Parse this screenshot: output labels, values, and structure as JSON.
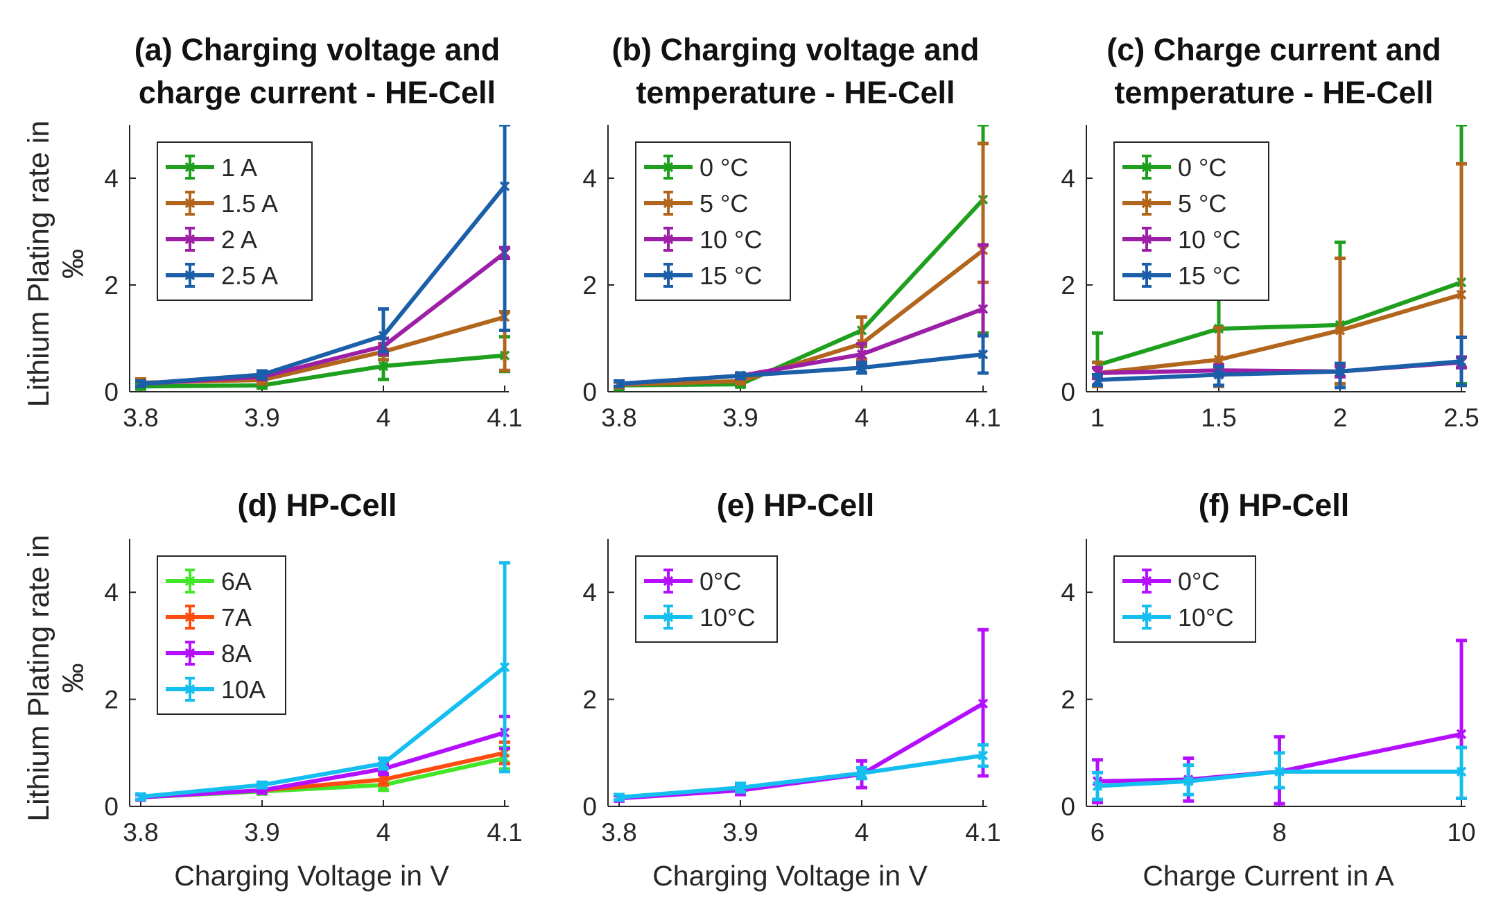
{
  "chart_data": [
    {
      "id": "a",
      "type": "line",
      "title_lines": [
        "(a) Charging voltage and",
        "charge current - HE-Cell"
      ],
      "ylabel_lines": [
        "Lithium Plating rate in",
        "‰"
      ],
      "xlabel": "",
      "x": [
        3.8,
        3.9,
        4.0,
        4.1
      ],
      "xticks": [
        3.8,
        3.9,
        4,
        4.1
      ],
      "xtick_labels": [
        "3.8",
        "3.9",
        "4",
        "4.1"
      ],
      "xlim": [
        3.8,
        4.1
      ],
      "ylim": [
        0,
        5
      ],
      "yticks": [
        0,
        2,
        4
      ],
      "ytick_labels": [
        "0",
        "2",
        "4"
      ],
      "legend_loc": "top-left",
      "series": [
        {
          "name": "1 A",
          "color": "#1ea01e",
          "values": [
            0.1,
            0.12,
            0.48,
            0.68
          ],
          "err_lo": [
            0.05,
            0.05,
            0.25,
            0.3
          ],
          "err_hi": [
            0.05,
            0.05,
            0.2,
            0.35
          ]
        },
        {
          "name": "1.5 A",
          "color": "#b2651c",
          "values": [
            0.17,
            0.22,
            0.75,
            1.4
          ],
          "err_lo": [
            0.07,
            0.07,
            0.15,
            1.0
          ],
          "err_hi": [
            0.07,
            0.07,
            0.15,
            0.1
          ]
        },
        {
          "name": "2 A",
          "color": "#9c1fa6",
          "values": [
            0.15,
            0.28,
            0.85,
            2.6
          ],
          "err_lo": [
            0.05,
            0.05,
            0.15,
            0.1
          ],
          "err_hi": [
            0.05,
            0.05,
            0.15,
            0.1
          ]
        },
        {
          "name": "2.5 A",
          "color": "#1a5fa8",
          "values": [
            0.15,
            0.32,
            1.05,
            3.85
          ],
          "err_lo": [
            0.05,
            0.07,
            0.3,
            2.7
          ],
          "err_hi": [
            0.05,
            0.07,
            0.5,
            1.15
          ]
        }
      ]
    },
    {
      "id": "b",
      "type": "line",
      "title_lines": [
        "(b) Charging voltage and",
        "temperature - HE-Cell"
      ],
      "ylabel_lines": [],
      "xlabel": "",
      "x": [
        3.8,
        3.9,
        4.0,
        4.1
      ],
      "xticks": [
        3.8,
        3.9,
        4,
        4.1
      ],
      "xtick_labels": [
        "3.8",
        "3.9",
        "4",
        "4.1"
      ],
      "xlim": [
        3.8,
        4.1
      ],
      "ylim": [
        0,
        5
      ],
      "yticks": [
        0,
        2,
        4
      ],
      "ytick_labels": [
        "0",
        "2",
        "4"
      ],
      "legend_loc": "top-left",
      "series": [
        {
          "name": "0 °C",
          "color": "#1ea01e",
          "values": [
            0.12,
            0.14,
            1.15,
            3.6
          ],
          "err_lo": [
            0.08,
            0.05,
            0.3,
            2.5
          ],
          "err_hi": [
            0.08,
            0.05,
            0.25,
            1.4
          ]
        },
        {
          "name": "5 °C",
          "color": "#b2651c",
          "values": [
            0.13,
            0.2,
            0.9,
            2.65
          ],
          "err_lo": [
            0.05,
            0.05,
            0.3,
            0.6
          ],
          "err_hi": [
            0.05,
            0.05,
            0.5,
            2.0
          ]
        },
        {
          "name": "10 °C",
          "color": "#9c1fa6",
          "values": [
            0.15,
            0.3,
            0.7,
            1.55
          ],
          "err_lo": [
            0.05,
            0.05,
            0.2,
            0.5
          ],
          "err_hi": [
            0.05,
            0.05,
            0.2,
            1.2
          ]
        },
        {
          "name": "15 °C",
          "color": "#1a5fa8",
          "values": [
            0.15,
            0.3,
            0.45,
            0.7
          ],
          "err_lo": [
            0.05,
            0.05,
            0.1,
            0.35
          ],
          "err_hi": [
            0.05,
            0.05,
            0.1,
            0.35
          ]
        }
      ]
    },
    {
      "id": "c",
      "type": "line",
      "title_lines": [
        "(c) Charge current and",
        "temperature - HE-Cell"
      ],
      "ylabel_lines": [],
      "xlabel": "",
      "x": [
        1,
        1.5,
        2,
        2.5
      ],
      "xticks": [
        1,
        1.5,
        2,
        2.5
      ],
      "xtick_labels": [
        "1",
        "1.5",
        "2",
        "2.5"
      ],
      "xlim": [
        1,
        2.5
      ],
      "ylim": [
        0,
        5
      ],
      "yticks": [
        0,
        2,
        4
      ],
      "ytick_labels": [
        "0",
        "2",
        "4"
      ],
      "legend_loc": "top-left",
      "series": [
        {
          "name": "0 °C",
          "color": "#1ea01e",
          "values": [
            0.5,
            1.18,
            1.25,
            2.05
          ],
          "err_lo": [
            0.4,
            0.8,
            1.1,
            1.9
          ],
          "err_hi": [
            0.6,
            0.6,
            1.55,
            2.95
          ]
        },
        {
          "name": "5 °C",
          "color": "#b2651c",
          "values": [
            0.35,
            0.6,
            1.15,
            1.82
          ],
          "err_lo": [
            0.25,
            0.5,
            1.0,
            1.7
          ],
          "err_hi": [
            0.2,
            0.6,
            1.35,
            2.45
          ]
        },
        {
          "name": "10 °C",
          "color": "#9c1fa6",
          "values": [
            0.35,
            0.4,
            0.38,
            0.55
          ],
          "err_lo": [
            0.1,
            0.1,
            0.1,
            0.1
          ],
          "err_hi": [
            0.1,
            0.1,
            0.1,
            0.1
          ]
        },
        {
          "name": "15 °C",
          "color": "#1a5fa8",
          "values": [
            0.22,
            0.32,
            0.38,
            0.57
          ],
          "err_lo": [
            0.1,
            0.2,
            0.3,
            0.45
          ],
          "err_hi": [
            0.1,
            0.15,
            0.15,
            0.45
          ]
        }
      ]
    },
    {
      "id": "d",
      "type": "line",
      "title_lines": [
        "(d) HP-Cell"
      ],
      "ylabel_lines": [
        "Lithium Plating rate in",
        "‰"
      ],
      "xlabel": "Charging Voltage in V",
      "x": [
        3.8,
        3.9,
        4.0,
        4.1
      ],
      "xticks": [
        3.8,
        3.9,
        4,
        4.1
      ],
      "xtick_labels": [
        "3.8",
        "3.9",
        "4",
        "4.1"
      ],
      "xlim": [
        3.8,
        4.1
      ],
      "ylim": [
        0,
        5
      ],
      "yticks": [
        0,
        2,
        4
      ],
      "ytick_labels": [
        "0",
        "2",
        "4"
      ],
      "legend_loc": "top-left",
      "series": [
        {
          "name": "6A",
          "color": "#44e62a",
          "values": [
            0.17,
            0.28,
            0.4,
            0.9
          ],
          "err_lo": [
            0.05,
            0.05,
            0.1,
            0.2
          ],
          "err_hi": [
            0.05,
            0.05,
            0.1,
            0.2
          ]
        },
        {
          "name": "7A",
          "color": "#ff4c0f",
          "values": [
            0.17,
            0.3,
            0.5,
            1.0
          ],
          "err_lo": [
            0.05,
            0.05,
            0.1,
            0.2
          ],
          "err_hi": [
            0.05,
            0.05,
            0.1,
            0.2
          ]
        },
        {
          "name": "8A",
          "color": "#b40fff",
          "values": [
            0.17,
            0.3,
            0.7,
            1.38
          ],
          "err_lo": [
            0.05,
            0.05,
            0.1,
            0.3
          ],
          "err_hi": [
            0.05,
            0.05,
            0.1,
            0.3
          ]
        },
        {
          "name": "10A",
          "color": "#14bff0",
          "values": [
            0.18,
            0.4,
            0.8,
            2.6
          ],
          "err_lo": [
            0.05,
            0.05,
            0.1,
            1.95
          ],
          "err_hi": [
            0.05,
            0.05,
            0.1,
            1.95
          ]
        }
      ]
    },
    {
      "id": "e",
      "type": "line",
      "title_lines": [
        "(e) HP-Cell"
      ],
      "ylabel_lines": [],
      "xlabel": "Charging Voltage in V",
      "x": [
        3.8,
        3.9,
        4.0,
        4.1
      ],
      "xticks": [
        3.8,
        3.9,
        4,
        4.1
      ],
      "xtick_labels": [
        "3.8",
        "3.9",
        "4",
        "4.1"
      ],
      "xlim": [
        3.8,
        4.1
      ],
      "ylim": [
        0,
        5
      ],
      "yticks": [
        0,
        2,
        4
      ],
      "ytick_labels": [
        "0",
        "2",
        "4"
      ],
      "legend_loc": "top-left",
      "series": [
        {
          "name": "0°C",
          "color": "#b40fff",
          "values": [
            0.15,
            0.3,
            0.6,
            1.92
          ],
          "err_lo": [
            0.05,
            0.08,
            0.25,
            1.35
          ],
          "err_hi": [
            0.05,
            0.08,
            0.25,
            1.38
          ]
        },
        {
          "name": "10°C",
          "color": "#14bff0",
          "values": [
            0.17,
            0.35,
            0.62,
            0.95
          ],
          "err_lo": [
            0.05,
            0.08,
            0.1,
            0.2
          ],
          "err_hi": [
            0.05,
            0.08,
            0.1,
            0.2
          ]
        }
      ]
    },
    {
      "id": "f",
      "type": "line",
      "title_lines": [
        "(f) HP-Cell"
      ],
      "ylabel_lines": [],
      "xlabel": "Charge Current in A",
      "x": [
        6,
        7,
        8,
        10
      ],
      "xticks": [
        6,
        8,
        10
      ],
      "xtick_labels": [
        "6",
        "8",
        "10"
      ],
      "xlim": [
        6,
        10
      ],
      "ylim": [
        0,
        5
      ],
      "yticks": [
        0,
        2,
        4
      ],
      "ytick_labels": [
        "0",
        "2",
        "4"
      ],
      "legend_loc": "top-left",
      "series": [
        {
          "name": "0°C",
          "color": "#b40fff",
          "values": [
            0.47,
            0.5,
            0.65,
            1.35
          ],
          "err_lo": [
            0.4,
            0.4,
            0.6,
            1.2
          ],
          "err_hi": [
            0.4,
            0.4,
            0.65,
            1.75
          ]
        },
        {
          "name": "10°C",
          "color": "#14bff0",
          "values": [
            0.38,
            0.47,
            0.65,
            0.65
          ],
          "err_lo": [
            0.25,
            0.25,
            0.3,
            0.5
          ],
          "err_hi": [
            0.25,
            0.3,
            0.35,
            0.45
          ]
        }
      ]
    }
  ]
}
